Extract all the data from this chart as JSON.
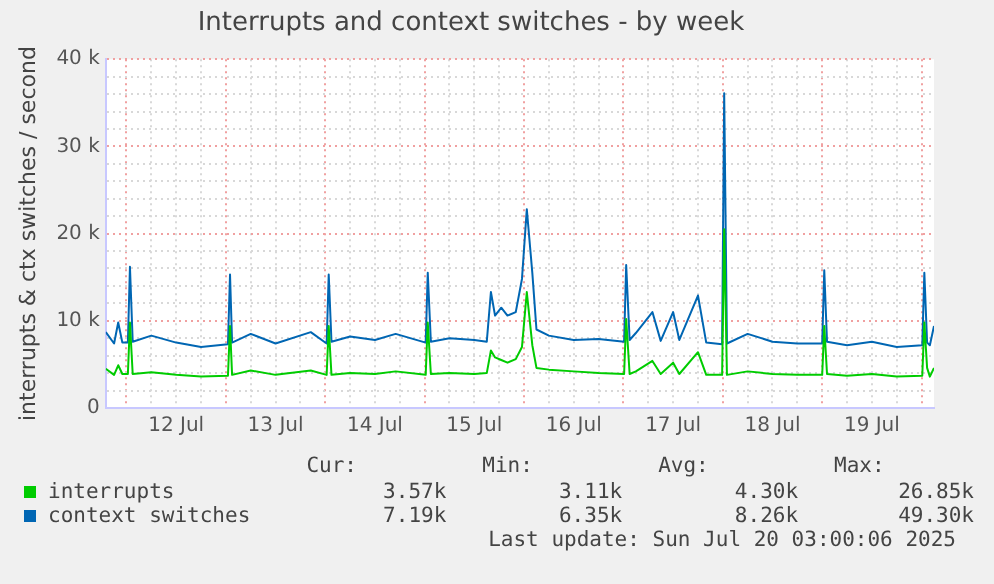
{
  "chart_data": {
    "type": "line",
    "title": "Interrupts and context switches - by week",
    "ylabel": "interrupts & ctx switches / second",
    "x": [
      "2025-07-11T19:00",
      "2025-07-11T21:00",
      "2025-07-11T22:00",
      "2025-07-11T23:00",
      "2025-07-12T00:20",
      "2025-07-12T00:50",
      "2025-07-12T01:30",
      "2025-07-12T06:00",
      "2025-07-12T12:00",
      "2025-07-12T18:00",
      "2025-07-13T00:30",
      "2025-07-13T01:00",
      "2025-07-13T01:30",
      "2025-07-13T06:00",
      "2025-07-13T12:00",
      "2025-07-13T20:30",
      "2025-07-14T00:20",
      "2025-07-14T00:50",
      "2025-07-14T01:30",
      "2025-07-14T06:00",
      "2025-07-14T12:00",
      "2025-07-14T17:00",
      "2025-07-15T00:15",
      "2025-07-15T00:45",
      "2025-07-15T01:30",
      "2025-07-15T06:00",
      "2025-07-15T12:00",
      "2025-07-15T15:00",
      "2025-07-15T16:00",
      "2025-07-15T17:00",
      "2025-07-15T18:30",
      "2025-07-15T20:00",
      "2025-07-15T22:00",
      "2025-07-15T23:30",
      "2025-07-16T00:40",
      "2025-07-16T02:00",
      "2025-07-16T03:00",
      "2025-07-16T06:00",
      "2025-07-16T12:00",
      "2025-07-16T18:00",
      "2025-07-17T00:10",
      "2025-07-17T00:40",
      "2025-07-17T01:30",
      "2025-07-17T03:00",
      "2025-07-17T07:00",
      "2025-07-17T09:00",
      "2025-07-17T12:00",
      "2025-07-17T13:30",
      "2025-07-17T18:00",
      "2025-07-17T20:00",
      "2025-07-17T23:50",
      "2025-07-18T00:20",
      "2025-07-18T01:00",
      "2025-07-18T06:00",
      "2025-07-18T12:00",
      "2025-07-18T18:00",
      "2025-07-19T00:00",
      "2025-07-19T00:30",
      "2025-07-19T01:10",
      "2025-07-19T06:00",
      "2025-07-19T12:00",
      "2025-07-19T18:00",
      "2025-07-20T00:10",
      "2025-07-20T00:40",
      "2025-07-20T01:20",
      "2025-07-20T02:00",
      "2025-07-20T03:00"
    ],
    "series": [
      {
        "name": "interrupts",
        "color": "#00cc00",
        "values": [
          4500,
          3800,
          4900,
          3900,
          3900,
          9800,
          3900,
          4100,
          3800,
          3600,
          3700,
          9400,
          3800,
          4300,
          3800,
          4300,
          3800,
          9400,
          3800,
          4000,
          3900,
          4200,
          3800,
          9800,
          3900,
          4000,
          3900,
          4000,
          6600,
          5800,
          5500,
          5200,
          5600,
          7000,
          13300,
          7200,
          4600,
          4400,
          4200,
          4000,
          3900,
          10200,
          3900,
          4200,
          5400,
          3900,
          5200,
          3900,
          6400,
          3800,
          3800,
          20500,
          3800,
          4200,
          3900,
          3800,
          3800,
          9400,
          3900,
          3700,
          3900,
          3600,
          3700,
          9800,
          4600,
          3600,
          4600
        ]
      },
      {
        "name": "context switches",
        "color": "#0066b3",
        "values": [
          8700,
          7400,
          9800,
          7500,
          7500,
          16200,
          7600,
          8300,
          7500,
          7000,
          7300,
          15300,
          7500,
          8500,
          7400,
          8700,
          7400,
          15300,
          7600,
          8200,
          7800,
          8500,
          7500,
          15500,
          7600,
          8000,
          7800,
          7600,
          13300,
          10600,
          11500,
          10600,
          11000,
          14800,
          22800,
          15500,
          9000,
          8300,
          7800,
          7900,
          7600,
          16400,
          7800,
          8600,
          11000,
          7700,
          11000,
          7800,
          12900,
          7500,
          7300,
          36100,
          7400,
          8500,
          7600,
          7400,
          7400,
          15800,
          7600,
          7200,
          7600,
          7000,
          7200,
          15500,
          7500,
          7200,
          9400
        ]
      }
    ],
    "xlim": [
      "2025-07-11T19:00",
      "2025-07-20T03:00"
    ],
    "xticks": [
      {
        "value": "2025-07-12T00:00",
        "label": null
      },
      {
        "value": "2025-07-12T06:00",
        "label": null
      },
      {
        "value": "2025-07-12T12:00",
        "label": "12 Jul"
      },
      {
        "value": "2025-07-12T18:00",
        "label": null
      },
      {
        "value": "2025-07-13T00:00",
        "label": null
      },
      {
        "value": "2025-07-13T06:00",
        "label": null
      },
      {
        "value": "2025-07-13T12:00",
        "label": "13 Jul"
      },
      {
        "value": "2025-07-13T18:00",
        "label": null
      },
      {
        "value": "2025-07-14T00:00",
        "label": null
      },
      {
        "value": "2025-07-14T06:00",
        "label": null
      },
      {
        "value": "2025-07-14T12:00",
        "label": "14 Jul"
      },
      {
        "value": "2025-07-14T18:00",
        "label": null
      },
      {
        "value": "2025-07-15T00:00",
        "label": null
      },
      {
        "value": "2025-07-15T06:00",
        "label": null
      },
      {
        "value": "2025-07-15T12:00",
        "label": "15 Jul"
      },
      {
        "value": "2025-07-15T18:00",
        "label": null
      },
      {
        "value": "2025-07-16T00:00",
        "label": null
      },
      {
        "value": "2025-07-16T06:00",
        "label": null
      },
      {
        "value": "2025-07-16T12:00",
        "label": "16 Jul"
      },
      {
        "value": "2025-07-16T18:00",
        "label": null
      },
      {
        "value": "2025-07-17T00:00",
        "label": null
      },
      {
        "value": "2025-07-17T06:00",
        "label": null
      },
      {
        "value": "2025-07-17T12:00",
        "label": "17 Jul"
      },
      {
        "value": "2025-07-17T18:00",
        "label": null
      },
      {
        "value": "2025-07-18T00:00",
        "label": null
      },
      {
        "value": "2025-07-18T06:00",
        "label": null
      },
      {
        "value": "2025-07-18T12:00",
        "label": "18 Jul"
      },
      {
        "value": "2025-07-18T18:00",
        "label": null
      },
      {
        "value": "2025-07-19T00:00",
        "label": null
      },
      {
        "value": "2025-07-19T06:00",
        "label": null
      },
      {
        "value": "2025-07-19T12:00",
        "label": "19 Jul"
      },
      {
        "value": "2025-07-19T18:00",
        "label": null
      },
      {
        "value": "2025-07-20T00:00",
        "label": null
      }
    ],
    "ylim": [
      0,
      40000
    ],
    "yticks": [
      0,
      {
        "value": 2000,
        "label": null
      },
      {
        "value": 4000,
        "label": null
      },
      {
        "value": 6000,
        "label": null
      },
      {
        "value": 8000,
        "label": null
      },
      {
        "value": 10000,
        "label": "10 k"
      },
      {
        "value": 12000,
        "label": null
      },
      {
        "value": 14000,
        "label": null
      },
      {
        "value": 16000,
        "label": null
      },
      {
        "value": 18000,
        "label": null
      },
      {
        "value": 20000,
        "label": "20 k"
      },
      {
        "value": 22000,
        "label": null
      },
      {
        "value": 24000,
        "label": null
      },
      {
        "value": 26000,
        "label": null
      },
      {
        "value": 28000,
        "label": null
      },
      {
        "value": 30000,
        "label": "30 k"
      },
      {
        "value": 32000,
        "label": null
      },
      {
        "value": 34000,
        "label": null
      },
      {
        "value": 36000,
        "label": null
      },
      {
        "value": 38000,
        "label": null
      },
      {
        "value": 40000,
        "label": "40 k"
      }
    ],
    "annotations": [
      "Cur:",
      "Min:",
      "Avg:",
      "Max:",
      "3.57k",
      "3.11k",
      "4.30k",
      "26.85k",
      "7.19k",
      "6.35k",
      "8.26k",
      "49.30k",
      "Last update: Sun Jul 20 03:00:06 2025"
    ],
    "grid": true,
    "legend": "bottom left",
    "marker": "none",
    "line_style": "solid"
  }
}
